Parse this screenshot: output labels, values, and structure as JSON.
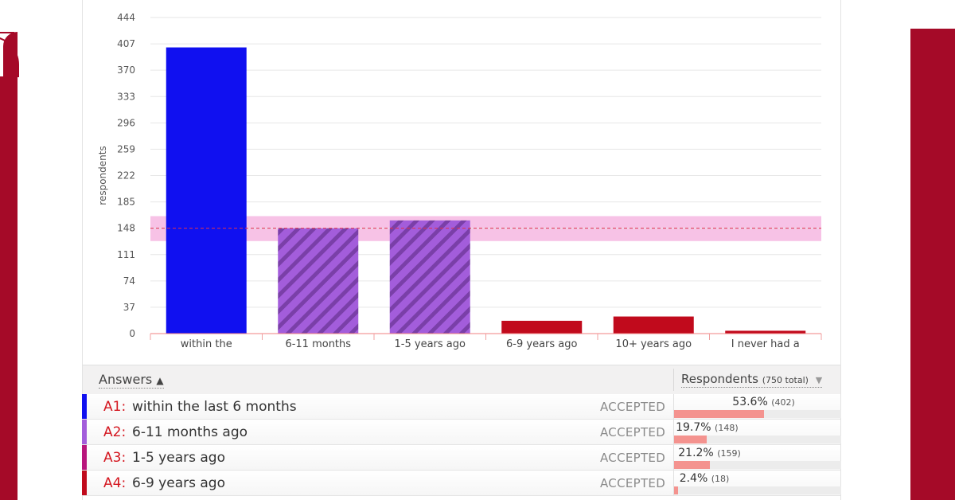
{
  "colors": {
    "brand": "#a50a28",
    "bar_blue": "#1010f0",
    "bar_purple": "#a35ddb",
    "bar_purple_stripe": "#7a3fa8",
    "bar_red": "#c10a1c",
    "band": "#f7c2e6",
    "mean_line": "#e03050",
    "progress_fill": "#f4938f"
  },
  "chart_data": {
    "type": "bar",
    "ylabel": "respondents",
    "xlabel": "",
    "ylim": [
      0,
      444
    ],
    "yticks": [
      0,
      37,
      74,
      111,
      148,
      185,
      222,
      259,
      296,
      333,
      370,
      407,
      444
    ],
    "grid": true,
    "categories": [
      "within the",
      "6-11 months",
      "1-5 years ago",
      "6-9 years ago",
      "10+ years ago",
      "I never had a"
    ],
    "values": [
      402,
      148,
      159,
      18,
      24,
      4
    ],
    "bar_colors": [
      "#1010f0",
      "#a35ddb",
      "#a35ddb",
      "#c10a1c",
      "#c10a1c",
      "#c10a1c"
    ],
    "hatched": [
      false,
      true,
      true,
      false,
      false,
      false
    ],
    "reference_line": {
      "value": 148,
      "band": [
        130,
        165
      ]
    }
  },
  "table": {
    "answers_header": "Answers",
    "sort_arrow": "▲",
    "respondents_header": "Respondents",
    "total_note": "(750 total)",
    "dropdown_arrow": "▼",
    "rows": [
      {
        "code": "A1:",
        "text": "within the last 6 months",
        "status": "ACCEPTED",
        "pct": "53.6%",
        "count": "(402)",
        "fraction": 0.536,
        "color": "#1010f0"
      },
      {
        "code": "A2:",
        "text": "6-11 months ago",
        "status": "ACCEPTED",
        "pct": "19.7%",
        "count": "(148)",
        "fraction": 0.197,
        "color": "#a35ddb"
      },
      {
        "code": "A3:",
        "text": "1-5 years ago",
        "status": "ACCEPTED",
        "pct": "21.2%",
        "count": "(159)",
        "fraction": 0.212,
        "color": "#b8157c"
      },
      {
        "code": "A4:",
        "text": "6-9 years ago",
        "status": "ACCEPTED",
        "pct": "2.4%",
        "count": "(18)",
        "fraction": 0.024,
        "color": "#c10a1c"
      }
    ]
  }
}
